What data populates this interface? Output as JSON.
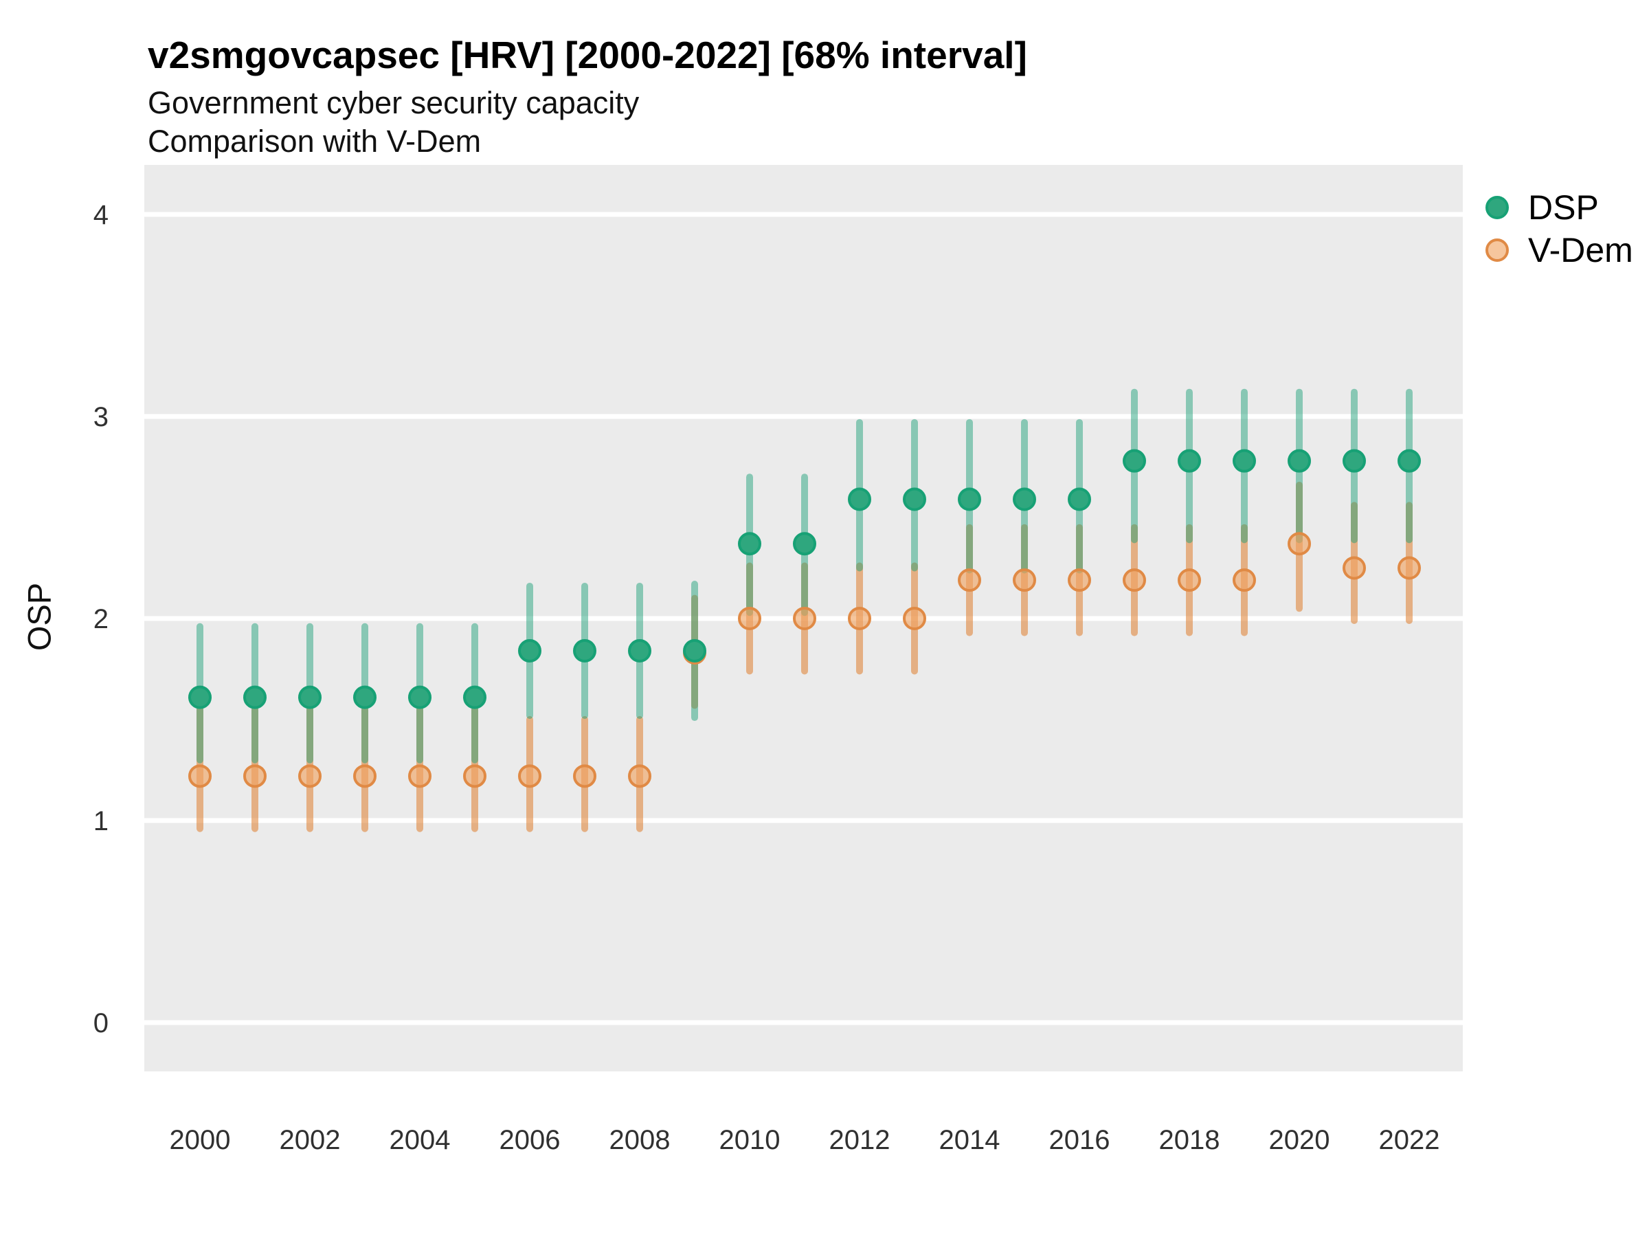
{
  "header": {
    "title": "v2smgovcapsec [HRV] [2000-2022] [68% interval]",
    "subtitle_line1": "Government cyber security capacity",
    "subtitle_line2": "Comparison with V-Dem"
  },
  "axes": {
    "y_label": "OSP",
    "y_ticks": [
      "4",
      "3",
      "2",
      "1",
      "0"
    ],
    "x_ticks": [
      "2000",
      "2002",
      "2004",
      "2006",
      "2008",
      "2010",
      "2012",
      "2014",
      "2016",
      "2018",
      "2020",
      "2022"
    ]
  },
  "legend": {
    "items": [
      {
        "label": "DSP"
      },
      {
        "label": "V-Dem"
      }
    ]
  },
  "colors": {
    "panel_background": "#EBEBEB",
    "gridline": "#FFFFFF",
    "dsp_point_fill": "#2FA77E",
    "dsp_point_stroke": "#17A175",
    "dsp_bar": "rgba(27,158,119,0.48)",
    "vdem_point_fill": "rgba(240,163,97,0.62)",
    "vdem_point_stroke": "#E08A45",
    "vdem_bar": "rgba(223,125,45,0.55)"
  },
  "chart_data": {
    "type": "scatter",
    "title": "v2smgovcapsec [HRV] [2000-2022] [68% interval]",
    "subtitle": "Government cyber security capacity — Comparison with V-Dem",
    "xlabel": "",
    "ylabel": "OSP",
    "interval": "68%",
    "ylim": [
      -0.25,
      4.25
    ],
    "y_gridlines": [
      0,
      1,
      2,
      3,
      4
    ],
    "grid": "major-y only, white on grey panel",
    "legend_position": "right",
    "x": [
      2000,
      2001,
      2002,
      2003,
      2004,
      2005,
      2006,
      2007,
      2008,
      2009,
      2010,
      2011,
      2012,
      2013,
      2014,
      2015,
      2016,
      2017,
      2018,
      2019,
      2020,
      2021,
      2022
    ],
    "series": [
      {
        "name": "DSP",
        "values": [
          1.61,
          1.61,
          1.61,
          1.61,
          1.61,
          1.61,
          1.84,
          1.84,
          1.84,
          1.84,
          2.37,
          2.37,
          2.59,
          2.59,
          2.59,
          2.59,
          2.59,
          2.78,
          2.78,
          2.78,
          2.78,
          2.78,
          2.78
        ],
        "lo": [
          1.3,
          1.3,
          1.3,
          1.3,
          1.3,
          1.3,
          1.52,
          1.52,
          1.52,
          1.51,
          2.03,
          2.03,
          2.25,
          2.25,
          2.24,
          2.24,
          2.24,
          2.39,
          2.39,
          2.39,
          2.39,
          2.39,
          2.39
        ],
        "hi": [
          1.96,
          1.96,
          1.96,
          1.96,
          1.96,
          1.96,
          2.16,
          2.16,
          2.16,
          2.17,
          2.7,
          2.7,
          2.97,
          2.97,
          2.97,
          2.97,
          2.97,
          3.12,
          3.12,
          3.12,
          3.12,
          3.12,
          3.12
        ]
      },
      {
        "name": "V-Dem",
        "values": [
          1.22,
          1.22,
          1.22,
          1.22,
          1.22,
          1.22,
          1.22,
          1.22,
          1.22,
          1.83,
          2.0,
          2.0,
          2.0,
          2.0,
          2.19,
          2.19,
          2.19,
          2.19,
          2.19,
          2.19,
          2.37,
          2.25,
          2.25
        ],
        "lo": [
          0.96,
          0.96,
          0.96,
          0.96,
          0.96,
          0.96,
          0.96,
          0.96,
          0.96,
          1.57,
          1.74,
          1.74,
          1.74,
          1.74,
          1.93,
          1.93,
          1.93,
          1.93,
          1.93,
          1.93,
          2.05,
          1.99,
          1.99
        ],
        "hi": [
          1.55,
          1.55,
          1.55,
          1.55,
          1.55,
          1.55,
          1.5,
          1.5,
          1.5,
          2.1,
          2.26,
          2.26,
          2.26,
          2.26,
          2.45,
          2.45,
          2.45,
          2.45,
          2.45,
          2.45,
          2.66,
          2.56,
          2.56
        ]
      }
    ]
  }
}
